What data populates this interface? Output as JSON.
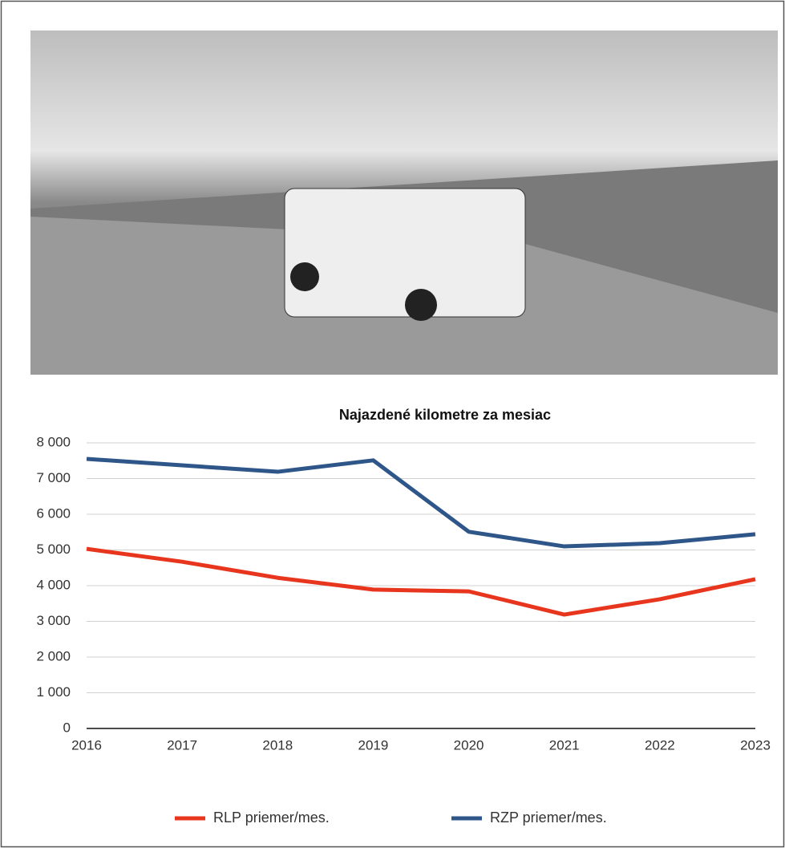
{
  "chart_data": {
    "type": "line",
    "title": "Najazdené kilometre za mesiac",
    "x": [
      2016,
      2017,
      2018,
      2019,
      2020,
      2021,
      2022,
      2023
    ],
    "series": [
      {
        "name": "RLP priemer/mes.",
        "color": "#e8361e",
        "values": [
          5030,
          4670,
          4220,
          3890,
          3840,
          3190,
          3620,
          4180
        ]
      },
      {
        "name": "RZP priemer/mes.",
        "color": "#2f5689",
        "values": [
          7550,
          7370,
          7190,
          7510,
          5510,
          5100,
          5190,
          5440
        ]
      }
    ],
    "xlim": [
      2016,
      2023
    ],
    "xticks": [
      2016,
      2017,
      2018,
      2019,
      2020,
      2021,
      2022,
      2023
    ],
    "ylim": [
      0,
      8000
    ],
    "yticks": [
      0,
      {
        "value": 1000,
        "label": "1 000"
      },
      {
        "value": 2000,
        "label": "2 000"
      },
      {
        "value": 3000,
        "label": "3 000"
      },
      {
        "value": 4000,
        "label": "4 000"
      },
      {
        "value": 5000,
        "label": "5 000"
      },
      {
        "value": 6000,
        "label": "6 000"
      },
      {
        "value": 7000,
        "label": "7 000"
      },
      {
        "value": 8000,
        "label": "8 000"
      }
    ],
    "grid": true,
    "legend": "bottom"
  }
}
